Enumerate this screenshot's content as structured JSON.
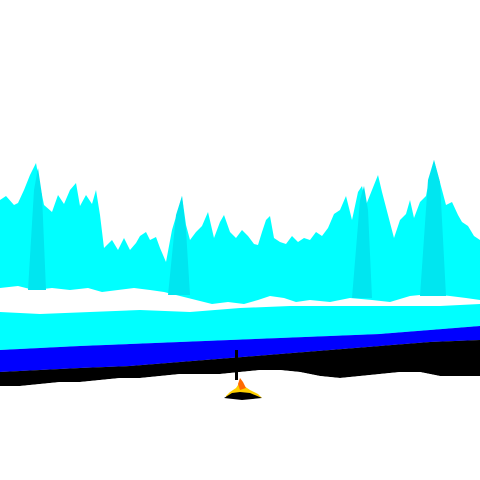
{
  "scene": {
    "colors": {
      "sky": "#ffffff",
      "ice": "#00ffff",
      "ice_dark": "#00e6f0",
      "water": "#0000ff",
      "water_dark": "#0000c8",
      "shadow": "#000000",
      "ground": "#ffffff",
      "flame": "#ff6a00",
      "ember": "#ffd000"
    },
    "icons": {
      "campfire": "campfire-icon",
      "torch": "torch-icon"
    }
  }
}
